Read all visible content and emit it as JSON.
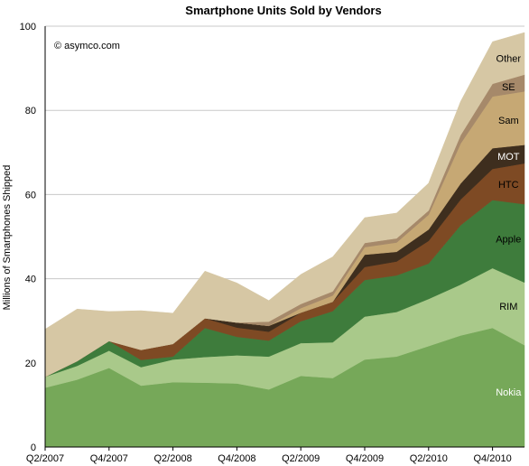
{
  "chart_data": {
    "type": "area",
    "title": "Smartphone Units Sold by Vendors",
    "ylabel": "Millions of Smartphones Shipped",
    "xlabel": "",
    "note": "© asymco.com",
    "ylim": [
      0,
      100
    ],
    "yticks": [
      "0",
      "20",
      "40",
      "60",
      "80",
      "100"
    ],
    "grid": true,
    "stacked": true,
    "x": [
      "Q2/2007",
      "Q3/2007",
      "Q4/2007",
      "Q1/2008",
      "Q2/2008",
      "Q3/2008",
      "Q4/2008",
      "Q1/2009",
      "Q2/2009",
      "Q3/2009",
      "Q4/2009",
      "Q1/2010",
      "Q2/2010",
      "Q3/2010",
      "Q4/2010",
      "Q1/2011"
    ],
    "xtick_labels": [
      "Q2/2007",
      "Q4/2007",
      "Q2/2008",
      "Q4/2008",
      "Q2/2009",
      "Q4/2009",
      "Q2/2010",
      "Q4/2010"
    ],
    "series": [
      {
        "name": "Nokia",
        "color": "#76a859",
        "label_color": "#ffffff",
        "values": [
          14.1,
          16.0,
          18.8,
          14.6,
          15.4,
          15.3,
          15.1,
          13.7,
          16.9,
          16.4,
          20.8,
          21.5,
          24.0,
          26.5,
          28.3,
          24.2
        ]
      },
      {
        "name": "RIM",
        "color": "#a9c98a",
        "label_color": "#000000",
        "values": [
          2.6,
          3.3,
          4.1,
          4.4,
          5.4,
          6.1,
          6.7,
          7.8,
          7.8,
          8.5,
          10.2,
          10.6,
          11.2,
          12.1,
          14.2,
          14.9
        ]
      },
      {
        "name": "Apple",
        "color": "#3e7c3c",
        "label_color": "#000000",
        "values": [
          0.0,
          1.1,
          2.3,
          1.7,
          0.7,
          6.9,
          4.4,
          3.8,
          5.2,
          7.4,
          8.7,
          8.7,
          8.4,
          14.1,
          16.2,
          18.6
        ]
      },
      {
        "name": "HTC",
        "color": "#7e4a24",
        "label_color": "#000000",
        "values": [
          0.0,
          0.0,
          0.0,
          2.4,
          3.0,
          2.3,
          2.2,
          2.1,
          2.0,
          2.2,
          3.1,
          3.3,
          5.4,
          6.1,
          7.4,
          9.7
        ]
      },
      {
        "name": "MOT",
        "color": "#3e2e1e",
        "label_color": "#ffffff",
        "values": [
          0.0,
          0.0,
          0.0,
          0.0,
          0.0,
          0.0,
          1.2,
          1.4,
          0.0,
          0.0,
          2.9,
          2.3,
          2.7,
          3.8,
          4.9,
          4.4
        ]
      },
      {
        "name": "Sam",
        "color": "#c6a874",
        "label_color": "#000000",
        "values": [
          0.0,
          0.0,
          0.0,
          0.0,
          0.0,
          0.0,
          0.0,
          0.0,
          1.1,
          1.5,
          1.8,
          2.2,
          3.5,
          9.5,
          12.3,
          12.7
        ]
      },
      {
        "name": "SE",
        "color": "#a6896a",
        "label_color": "#000000",
        "values": [
          0.0,
          0.0,
          0.0,
          0.0,
          0.0,
          0.0,
          0.0,
          1.0,
          1.0,
          1.0,
          1.0,
          1.0,
          1.0,
          2.0,
          3.0,
          4.0
        ]
      },
      {
        "name": "Other",
        "color": "#d6c7a4",
        "label_color": "#000000",
        "values": [
          11.3,
          12.4,
          7.0,
          9.3,
          7.3,
          11.2,
          9.4,
          5.0,
          7.0,
          8.2,
          6.0,
          6.0,
          6.5,
          8.0,
          10.0,
          10.0
        ]
      }
    ],
    "label_positions_index": {
      "Nokia": 14.5,
      "RIM": 14.5,
      "Apple": 14.5,
      "HTC": 14.5,
      "MOT": 14.5,
      "Sam": 14.5,
      "SE": 14.5,
      "Other": 14.5
    }
  }
}
